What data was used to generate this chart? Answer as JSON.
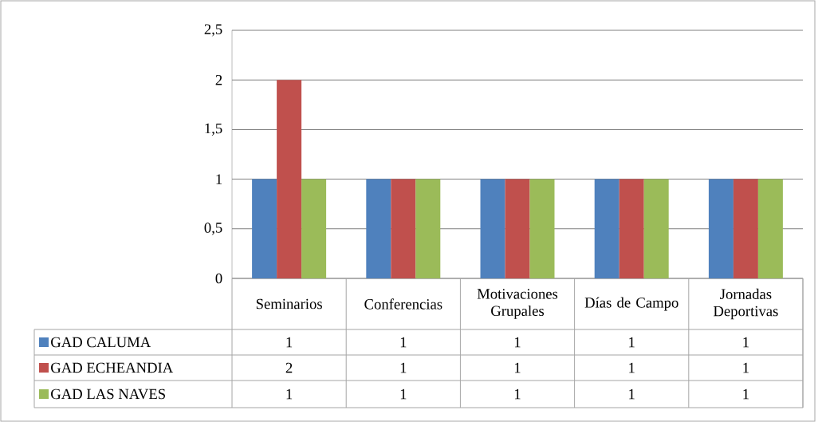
{
  "chart_data": {
    "type": "bar",
    "categories": [
      "Seminarios",
      "Conferencias",
      "Motivaciones Grupales",
      "Días de Campo",
      "Jornadas Deportivas"
    ],
    "series": [
      {
        "name": "GAD CALUMA",
        "color": "#4f81bd",
        "values": [
          1,
          1,
          1,
          1,
          1
        ]
      },
      {
        "name": "GAD ECHEANDIA",
        "color": "#c0504d",
        "values": [
          2,
          1,
          1,
          1,
          1
        ]
      },
      {
        "name": "GAD LAS NAVES",
        "color": "#9bbb59",
        "values": [
          1,
          1,
          1,
          1,
          1
        ]
      }
    ],
    "ylim": [
      0,
      2.5
    ],
    "yticks": [
      0,
      {
        "value": 0.5,
        "label": "0,5"
      },
      1,
      {
        "value": 1.5,
        "label": "1,5"
      },
      2,
      {
        "value": 2.5,
        "label": "2,5"
      }
    ],
    "grid": "y",
    "legend": "bottom left",
    "data_labels": true
  }
}
